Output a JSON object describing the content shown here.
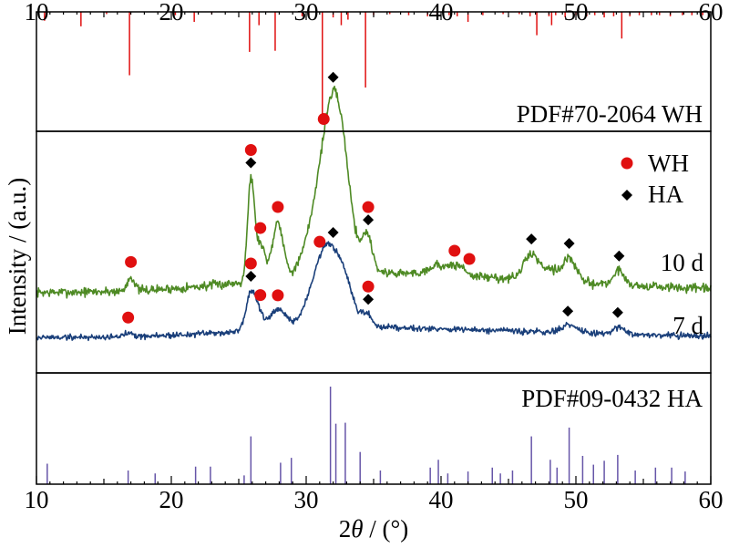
{
  "chart_data": {
    "type": "line",
    "x_range": [
      10,
      60
    ],
    "x_ticks": [
      "10",
      "20",
      "30",
      "40",
      "50",
      "60"
    ],
    "xlabel_pre": "2",
    "xlabel_theta": "θ",
    "xlabel_post": " / (°)",
    "ylabel": "Intensity / (a.u.)",
    "legend": [
      {
        "label": "WH",
        "marker": "circle",
        "color": "#e01010"
      },
      {
        "label": "HA",
        "marker": "diamond",
        "color": "#000000"
      }
    ],
    "reference_wh": {
      "label": "PDF#70-2064 WH",
      "color": "#e01010",
      "peaks": [
        {
          "x": 10.6,
          "i": 8
        },
        {
          "x": 13.3,
          "i": 13
        },
        {
          "x": 15.2,
          "i": 2
        },
        {
          "x": 16.9,
          "i": 57
        },
        {
          "x": 20.3,
          "i": 3
        },
        {
          "x": 21.7,
          "i": 9
        },
        {
          "x": 23.0,
          "i": 2
        },
        {
          "x": 25.8,
          "i": 36
        },
        {
          "x": 26.5,
          "i": 12
        },
        {
          "x": 27.7,
          "i": 35
        },
        {
          "x": 29.7,
          "i": 4
        },
        {
          "x": 30.2,
          "i": 3
        },
        {
          "x": 31.2,
          "i": 100
        },
        {
          "x": 32.0,
          "i": 5
        },
        {
          "x": 32.6,
          "i": 12
        },
        {
          "x": 33.1,
          "i": 7
        },
        {
          "x": 34.4,
          "i": 68
        },
        {
          "x": 35.0,
          "i": 3
        },
        {
          "x": 36.2,
          "i": 2
        },
        {
          "x": 37.6,
          "i": 3
        },
        {
          "x": 39.0,
          "i": 4
        },
        {
          "x": 39.7,
          "i": 3
        },
        {
          "x": 40.6,
          "i": 3
        },
        {
          "x": 41.2,
          "i": 4
        },
        {
          "x": 42.0,
          "i": 9
        },
        {
          "x": 43.1,
          "i": 3
        },
        {
          "x": 44.6,
          "i": 2
        },
        {
          "x": 45.8,
          "i": 2
        },
        {
          "x": 46.6,
          "i": 4
        },
        {
          "x": 47.1,
          "i": 21
        },
        {
          "x": 48.0,
          "i": 4
        },
        {
          "x": 48.2,
          "i": 12
        },
        {
          "x": 48.5,
          "i": 3
        },
        {
          "x": 49.2,
          "i": 5
        },
        {
          "x": 50.0,
          "i": 3
        },
        {
          "x": 50.8,
          "i": 4
        },
        {
          "x": 51.4,
          "i": 3
        },
        {
          "x": 52.1,
          "i": 5
        },
        {
          "x": 52.8,
          "i": 4
        },
        {
          "x": 53.4,
          "i": 24
        },
        {
          "x": 54.0,
          "i": 4
        },
        {
          "x": 54.7,
          "i": 3
        },
        {
          "x": 55.6,
          "i": 3
        },
        {
          "x": 56.2,
          "i": 3
        },
        {
          "x": 57.0,
          "i": 4
        },
        {
          "x": 57.9,
          "i": 3
        },
        {
          "x": 58.6,
          "i": 3
        },
        {
          "x": 59.4,
          "i": 3
        }
      ]
    },
    "reference_ha": {
      "label": "PDF#09-0432 HA",
      "color": "#6655a8",
      "peaks": [
        {
          "x": 10.8,
          "i": 21
        },
        {
          "x": 16.8,
          "i": 14
        },
        {
          "x": 18.8,
          "i": 11
        },
        {
          "x": 21.8,
          "i": 18
        },
        {
          "x": 22.9,
          "i": 18
        },
        {
          "x": 25.4,
          "i": 9
        },
        {
          "x": 25.9,
          "i": 49
        },
        {
          "x": 28.1,
          "i": 22
        },
        {
          "x": 28.9,
          "i": 27
        },
        {
          "x": 31.8,
          "i": 100
        },
        {
          "x": 32.2,
          "i": 62
        },
        {
          "x": 32.9,
          "i": 63
        },
        {
          "x": 34.0,
          "i": 33
        },
        {
          "x": 35.5,
          "i": 14
        },
        {
          "x": 39.2,
          "i": 17
        },
        {
          "x": 39.8,
          "i": 25
        },
        {
          "x": 40.5,
          "i": 11
        },
        {
          "x": 42.0,
          "i": 13
        },
        {
          "x": 43.8,
          "i": 17
        },
        {
          "x": 44.4,
          "i": 11
        },
        {
          "x": 45.3,
          "i": 14
        },
        {
          "x": 46.7,
          "i": 49
        },
        {
          "x": 48.1,
          "i": 25
        },
        {
          "x": 48.6,
          "i": 17
        },
        {
          "x": 49.5,
          "i": 58
        },
        {
          "x": 50.5,
          "i": 29
        },
        {
          "x": 51.3,
          "i": 20
        },
        {
          "x": 52.1,
          "i": 24
        },
        {
          "x": 53.1,
          "i": 30
        },
        {
          "x": 54.4,
          "i": 14
        },
        {
          "x": 55.9,
          "i": 17
        },
        {
          "x": 57.1,
          "i": 17
        },
        {
          "x": 58.1,
          "i": 13
        }
      ]
    },
    "series": [
      {
        "name": "10 d",
        "color": "#4e8a24",
        "baseline": 0.34,
        "noise": 0.012,
        "seed": 7,
        "components": [
          {
            "type": "hump",
            "c": 32.5,
            "w": 7.5,
            "a": 0.06
          },
          {
            "type": "hump",
            "c": 45,
            "w": 10,
            "a": 0.045
          },
          {
            "type": "peak",
            "c": 17,
            "w": 0.25,
            "a": 0.06
          },
          {
            "type": "peak",
            "c": 25.9,
            "w": 0.25,
            "a": 0.42
          },
          {
            "type": "peak",
            "c": 26.6,
            "w": 0.35,
            "a": 0.15
          },
          {
            "type": "peak",
            "c": 27.9,
            "w": 0.4,
            "a": 0.24
          },
          {
            "type": "peak",
            "c": 31.0,
            "w": 0.9,
            "a": 0.28
          },
          {
            "type": "peak",
            "c": 32.1,
            "w": 0.75,
            "a": 0.58
          },
          {
            "type": "peak",
            "c": 33.0,
            "w": 0.6,
            "a": 0.18
          },
          {
            "type": "peak",
            "c": 34.5,
            "w": 0.4,
            "a": 0.16
          },
          {
            "type": "peak",
            "c": 39.8,
            "w": 0.7,
            "a": 0.04
          },
          {
            "type": "peak",
            "c": 41.3,
            "w": 0.5,
            "a": 0.04
          },
          {
            "type": "peak",
            "c": 46.7,
            "w": 0.55,
            "a": 0.11
          },
          {
            "type": "peak",
            "c": 48.1,
            "w": 0.5,
            "a": 0.05
          },
          {
            "type": "peak",
            "c": 49.5,
            "w": 0.5,
            "a": 0.1
          },
          {
            "type": "peak",
            "c": 53.2,
            "w": 0.4,
            "a": 0.06
          }
        ],
        "label": "10 d"
      },
      {
        "name": "7 d",
        "color": "#1a3f7a",
        "baseline": 0.15,
        "noise": 0.008,
        "seed": 19,
        "components": [
          {
            "type": "hump",
            "c": 32,
            "w": 7,
            "a": 0.04
          },
          {
            "type": "hump",
            "c": 46,
            "w": 9,
            "a": 0.02
          },
          {
            "type": "peak",
            "c": 16.9,
            "w": 0.3,
            "a": 0.02
          },
          {
            "type": "peak",
            "c": 25.9,
            "w": 0.35,
            "a": 0.16
          },
          {
            "type": "peak",
            "c": 26.5,
            "w": 0.3,
            "a": 0.06
          },
          {
            "type": "peak",
            "c": 27.9,
            "w": 0.6,
            "a": 0.08
          },
          {
            "type": "peak",
            "c": 31.0,
            "w": 0.9,
            "a": 0.18
          },
          {
            "type": "peak",
            "c": 32.0,
            "w": 0.9,
            "a": 0.22
          },
          {
            "type": "peak",
            "c": 33.0,
            "w": 0.6,
            "a": 0.08
          },
          {
            "type": "peak",
            "c": 34.5,
            "w": 0.35,
            "a": 0.05
          },
          {
            "type": "peak",
            "c": 49.5,
            "w": 0.6,
            "a": 0.03
          },
          {
            "type": "peak",
            "c": 53.2,
            "w": 0.4,
            "a": 0.03
          }
        ],
        "label": "7 d"
      }
    ],
    "markers_10d": {
      "wh": [
        17.0,
        25.9,
        26.6,
        27.9,
        31.3,
        34.6,
        41.0,
        42.1
      ],
      "ha": [
        25.9,
        32.0,
        34.6,
        46.7,
        49.5,
        53.2
      ]
    },
    "markers_7d": {
      "wh": [
        16.8,
        25.9,
        26.6,
        27.9,
        31.0,
        34.6
      ],
      "ha": [
        25.9,
        32.0,
        34.6,
        49.4,
        53.1
      ]
    }
  }
}
